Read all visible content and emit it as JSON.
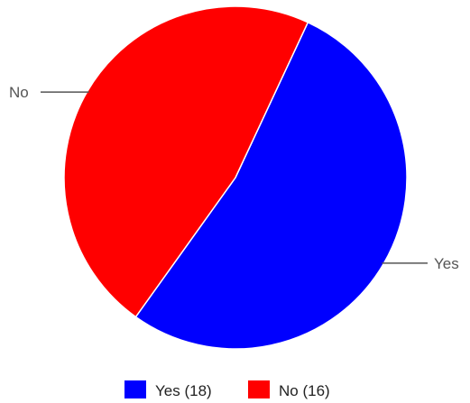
{
  "chart_data": {
    "type": "pie",
    "slices": [
      {
        "label": "Yes",
        "value": 18,
        "color": "#0000ff",
        "legend": "Yes (18)"
      },
      {
        "label": "No",
        "value": 16,
        "color": "#ff0000",
        "legend": "No (16)"
      }
    ],
    "legend_position": "bottom",
    "start_angle_deg": 25
  }
}
